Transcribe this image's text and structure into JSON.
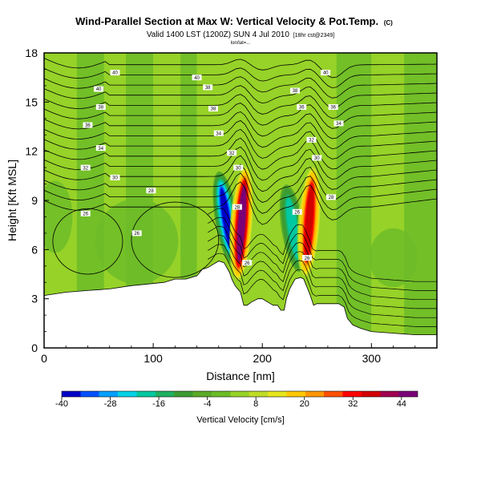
{
  "chart_data": {
    "type": "heatmap",
    "title": "Wind-Parallel Section at Max W: Vertical Velocity & Pot.Temp.",
    "copyright": "(C)",
    "subtitle": "Valid 1400 LST (1200Z) SUN 4 Jul 2010",
    "subtitle_note": "[18hr cst@2349]",
    "section_note": "lon/lat=...",
    "xlabel": "Distance [nm]",
    "ylabel": "Height [Kft MSL]",
    "xlim": [
      0,
      360
    ],
    "ylim": [
      0,
      18
    ],
    "xticks": [
      0,
      100,
      200,
      300
    ],
    "yticks": [
      0,
      3,
      6,
      9,
      12,
      15,
      18
    ],
    "colorbar": {
      "label": "Vertical Velocity [cm/s]",
      "range": [
        -40,
        48
      ],
      "ticks": [
        -40,
        -28,
        -16,
        -4,
        8,
        20,
        32,
        44
      ],
      "colors": [
        "#0000c8",
        "#0050ff",
        "#00a0ff",
        "#00d2e6",
        "#00c8a0",
        "#20b060",
        "#3c9c32",
        "#5aaa28",
        "#6cbc28",
        "#96d228",
        "#c0dc28",
        "#e6e61e",
        "#ffc800",
        "#ff9600",
        "#ff5000",
        "#ff0000",
        "#d20000",
        "#a00050",
        "#7a0078"
      ]
    },
    "terrain_profile": [
      [
        0,
        3.2
      ],
      [
        20,
        3.4
      ],
      [
        40,
        3.5
      ],
      [
        60,
        3.6
      ],
      [
        80,
        3.8
      ],
      [
        95,
        3.9
      ],
      [
        110,
        4.0
      ],
      [
        120,
        4.2
      ],
      [
        130,
        4.2
      ],
      [
        140,
        4.4
      ],
      [
        145,
        4.8
      ],
      [
        150,
        4.9
      ],
      [
        155,
        5.1
      ],
      [
        160,
        5.3
      ],
      [
        165,
        5.2
      ],
      [
        170,
        4.6
      ],
      [
        172,
        4.2
      ],
      [
        175,
        3.8
      ],
      [
        180,
        3.4
      ],
      [
        183,
        2.6
      ],
      [
        186,
        2.6
      ],
      [
        190,
        2.8
      ],
      [
        196,
        3.0
      ],
      [
        200,
        3.0
      ],
      [
        205,
        2.8
      ],
      [
        210,
        2.6
      ],
      [
        214,
        2.6
      ],
      [
        217,
        2.3
      ],
      [
        220,
        2.3
      ],
      [
        222,
        3.0
      ],
      [
        225,
        3.6
      ],
      [
        230,
        4.2
      ],
      [
        235,
        4.3
      ],
      [
        238,
        4.2
      ],
      [
        241,
        3.7
      ],
      [
        244,
        3.2
      ],
      [
        247,
        2.6
      ],
      [
        250,
        2.7
      ],
      [
        260,
        2.7
      ],
      [
        270,
        2.7
      ],
      [
        275,
        2.5
      ],
      [
        278,
        1.8
      ],
      [
        283,
        1.4
      ],
      [
        290,
        1.2
      ],
      [
        300,
        1.0
      ],
      [
        320,
        0.9
      ],
      [
        340,
        0.8
      ],
      [
        360,
        0.8
      ]
    ],
    "updraft_cores": [
      {
        "x": 181,
        "y_bottom": 4.0,
        "y_top": 11.2,
        "peak_w": 44
      },
      {
        "x": 243,
        "y_bottom": 4.2,
        "y_top": 11.2,
        "peak_w": 36
      }
    ],
    "downdraft_cores": [
      {
        "x": 167,
        "y_bottom": 5.0,
        "y_top": 10.8,
        "min_w": -36
      },
      {
        "x": 228,
        "y_bottom": 4.6,
        "y_top": 10.0,
        "min_w": -20
      }
    ],
    "contour_labels": [
      {
        "text": "40",
        "x": 65,
        "y": 16.8
      },
      {
        "text": "40",
        "x": 140,
        "y": 16.5
      },
      {
        "text": "40",
        "x": 258,
        "y": 16.8
      },
      {
        "text": "40",
        "x": 50,
        "y": 15.8
      },
      {
        "text": "38",
        "x": 150,
        "y": 15.9
      },
      {
        "text": "38",
        "x": 230,
        "y": 15.7
      },
      {
        "text": "38",
        "x": 52,
        "y": 14.7
      },
      {
        "text": "38",
        "x": 155,
        "y": 14.6
      },
      {
        "text": "36",
        "x": 236,
        "y": 14.7
      },
      {
        "text": "36",
        "x": 265,
        "y": 14.7
      },
      {
        "text": "36",
        "x": 40,
        "y": 13.6
      },
      {
        "text": "34",
        "x": 160,
        "y": 13.1
      },
      {
        "text": "34",
        "x": 270,
        "y": 13.7
      },
      {
        "text": "34",
        "x": 52,
        "y": 12.2
      },
      {
        "text": "32",
        "x": 245,
        "y": 12.7
      },
      {
        "text": "32",
        "x": 172,
        "y": 11.9
      },
      {
        "text": "32",
        "x": 38,
        "y": 11.0
      },
      {
        "text": "30",
        "x": 178,
        "y": 11.0
      },
      {
        "text": "30",
        "x": 250,
        "y": 11.6
      },
      {
        "text": "30",
        "x": 65,
        "y": 10.4
      },
      {
        "text": "28",
        "x": 98,
        "y": 9.6
      },
      {
        "text": "28",
        "x": 263,
        "y": 9.2
      },
      {
        "text": "28",
        "x": 177,
        "y": 8.6
      },
      {
        "text": "26",
        "x": 38,
        "y": 8.2
      },
      {
        "text": "26",
        "x": 232,
        "y": 8.3
      },
      {
        "text": "26",
        "x": 85,
        "y": 7.0
      },
      {
        "text": "26",
        "x": 186,
        "y": 5.2
      },
      {
        "text": "26",
        "x": 241,
        "y": 5.5
      }
    ]
  }
}
